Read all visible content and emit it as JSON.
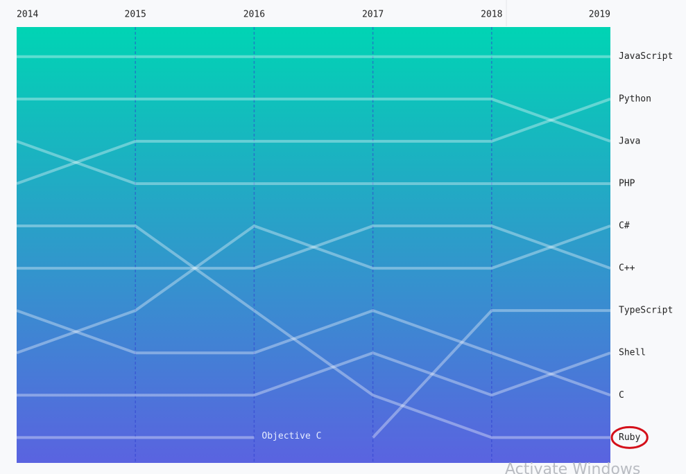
{
  "chart_data": {
    "type": "bump",
    "categories": [
      "2014",
      "2015",
      "2016",
      "2017",
      "2018",
      "2019"
    ],
    "ylim": [
      0.3,
      10.6
    ],
    "inverted": true,
    "color": "#ffffff",
    "gradient": [
      "#00d4b4",
      "#5a63e0"
    ],
    "highlight_series": 9,
    "series": [
      {
        "name": "JavaScript",
        "values": [
          1,
          1,
          1,
          1,
          1,
          1
        ]
      },
      {
        "name": "Python",
        "values": [
          4,
          3,
          3,
          3,
          3,
          2
        ]
      },
      {
        "name": "Java",
        "values": [
          2,
          2,
          2,
          2,
          2,
          3
        ]
      },
      {
        "name": "PHP",
        "values": [
          3,
          4,
          4,
          4,
          4,
          4
        ]
      },
      {
        "name": "C#",
        "values": [
          8,
          7,
          5,
          6,
          6,
          5
        ]
      },
      {
        "name": "C++",
        "values": [
          6,
          6,
          6,
          5,
          5,
          6
        ]
      },
      {
        "name": "TypeScript",
        "values": [
          null,
          null,
          null,
          10,
          7,
          7
        ]
      },
      {
        "name": "Shell",
        "values": [
          9,
          9,
          9,
          8,
          9,
          8
        ]
      },
      {
        "name": "C",
        "values": [
          7,
          8,
          8,
          7,
          8,
          9
        ]
      },
      {
        "name": "Ruby",
        "values": [
          5,
          5,
          7,
          9,
          10,
          10
        ]
      },
      {
        "name": "Objective C",
        "values": [
          10,
          10,
          10,
          null,
          null,
          null
        ]
      }
    ]
  },
  "watermark": "Activate Windows"
}
